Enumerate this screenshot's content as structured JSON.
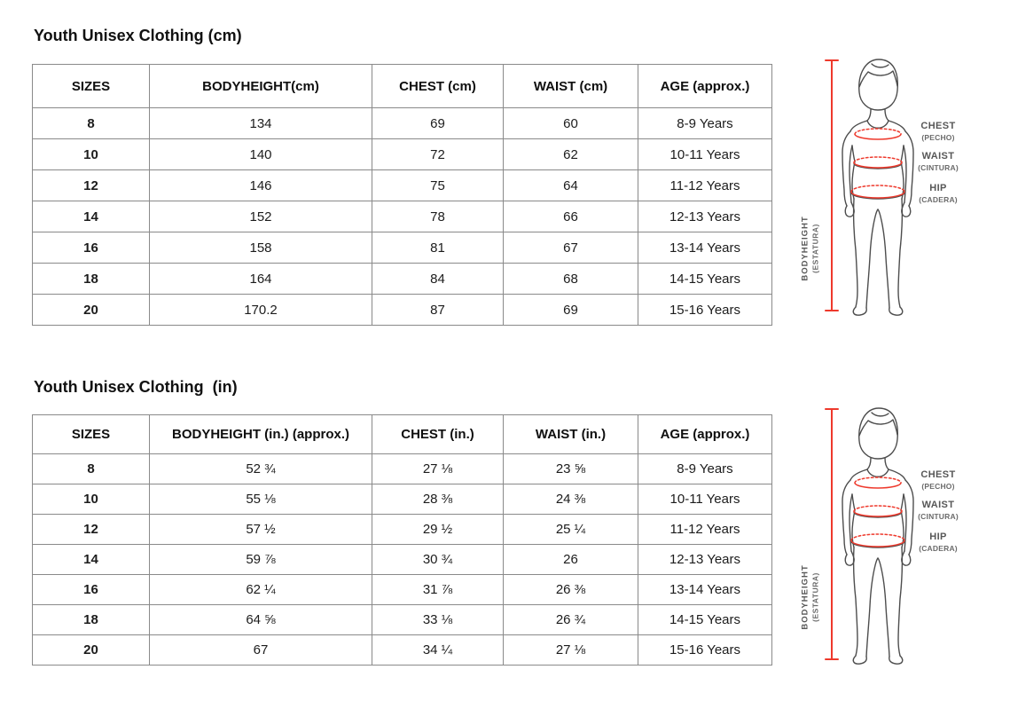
{
  "tables": {
    "cm": {
      "title": "Youth Unisex Clothing (cm)",
      "headers": [
        "SIZES",
        "BODYHEIGHT(cm)",
        "CHEST (cm)",
        "WAIST (cm)",
        "AGE (approx.)"
      ],
      "rows": [
        [
          "8",
          "134",
          "69",
          "60",
          "8-9 Years"
        ],
        [
          "10",
          "140",
          "72",
          "62",
          "10-11 Years"
        ],
        [
          "12",
          "146",
          "75",
          "64",
          "11-12 Years"
        ],
        [
          "14",
          "152",
          "78",
          "66",
          "12-13 Years"
        ],
        [
          "16",
          "158",
          "81",
          "67",
          "13-14 Years"
        ],
        [
          "18",
          "164",
          "84",
          "68",
          "14-15 Years"
        ],
        [
          "20",
          "170.2",
          "87",
          "69",
          "15-16 Years"
        ]
      ]
    },
    "inch": {
      "title": "Youth Unisex Clothing  (in)",
      "headers": [
        "SIZES",
        "BODYHEIGHT (in.) (approx.)",
        "CHEST (in.)",
        "WAIST (in.)",
        "AGE (approx.)"
      ],
      "rows": [
        [
          "8",
          "52 ¾",
          "27 ⅛",
          "23 ⅝",
          "8-9 Years"
        ],
        [
          "10",
          "55 ⅛",
          "28 ⅜",
          "24 ⅜",
          "10-11 Years"
        ],
        [
          "12",
          "57 ½",
          "29 ½",
          "25 ¼",
          "11-12 Years"
        ],
        [
          "14",
          "59 ⅞",
          "30 ¾",
          "26",
          "12-13 Years"
        ],
        [
          "16",
          "62 ¼",
          "31 ⅞",
          "26 ⅜",
          "13-14 Years"
        ],
        [
          "18",
          "64 ⅝",
          "33 ⅛",
          "26 ¾",
          "14-15 Years"
        ],
        [
          "20",
          "67",
          "34 ¼",
          "27 ⅛",
          "15-16 Years"
        ]
      ]
    }
  },
  "figure": {
    "labels": {
      "chest": "CHEST",
      "chest_sub": "(PECHO)",
      "waist": "WAIST",
      "waist_sub": "(CINTURA)",
      "hip": "HIP",
      "hip_sub": "(CADERA)",
      "height": "BODYHEIGHT",
      "height_sub": "(ESTATURA)"
    },
    "colors": {
      "measure_red": "#ee392c",
      "body_outline": "#4d4d4d",
      "label_gray": "#575757",
      "table_border": "#8a8a8a"
    }
  }
}
